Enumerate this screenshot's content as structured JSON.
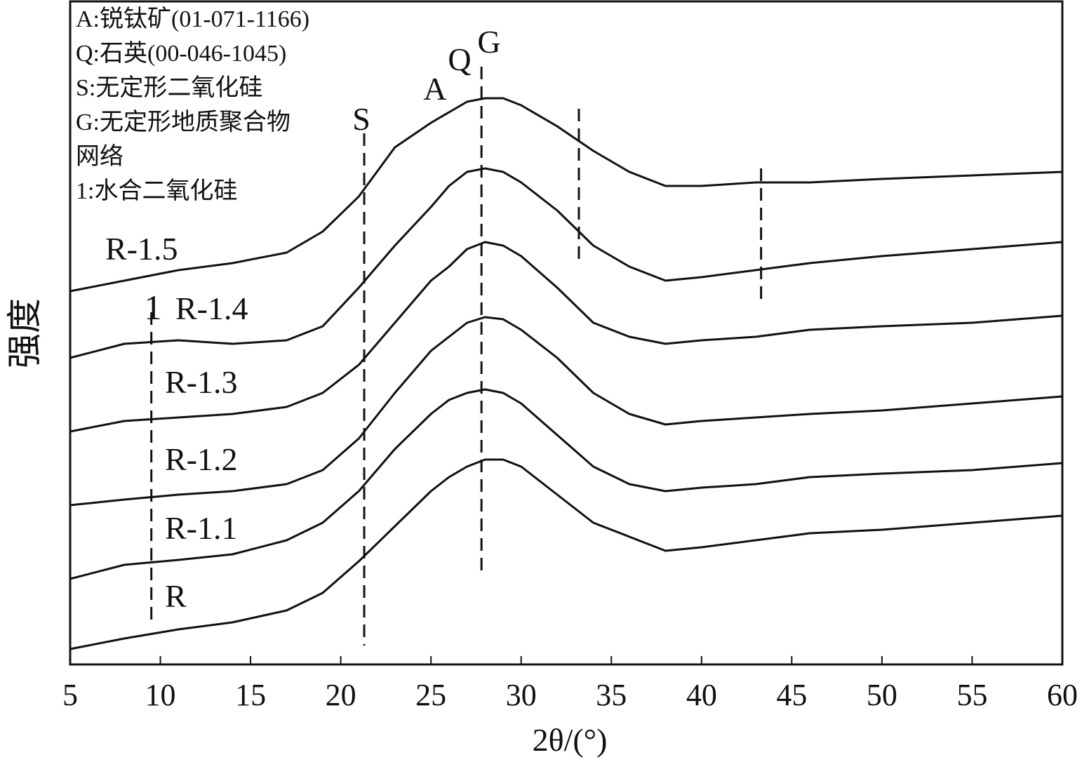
{
  "chart_data": {
    "type": "line",
    "xlabel": "2θ/(°)",
    "ylabel": "强度",
    "legend_lines": [
      "A:锐钛矿(01-071-1166)",
      "Q:石英(00-046-1045)",
      "S:无定形二氧化硅",
      "G:无定形地质聚合物",
      "网络",
      "1:水合二氧化硅"
    ],
    "x": [
      5,
      8,
      11,
      14,
      17,
      19,
      21,
      23,
      25,
      26,
      27,
      28,
      29,
      30,
      32,
      34,
      36,
      38,
      40,
      43,
      46,
      50,
      55,
      60
    ],
    "series": [
      {
        "name": "R",
        "color": "#111111",
        "values": [
          22,
          37,
          50,
          60,
          77,
          102,
          147,
          197,
          247,
          267,
          282,
          292,
          292,
          282,
          242,
          202,
          182,
          162,
          167,
          177,
          187,
          192,
          202,
          212
        ]
      },
      {
        "name": "R-1.1",
        "color": "#111111",
        "values": [
          122,
          142,
          149,
          157,
          177,
          202,
          247,
          307,
          357,
          377,
          387,
          392,
          387,
          372,
          327,
          282,
          257,
          247,
          252,
          257,
          267,
          272,
          277,
          287
        ]
      },
      {
        "name": "R-1.2",
        "color": "#111111",
        "values": [
          227,
          235,
          242,
          247,
          257,
          277,
          322,
          387,
          447,
          467,
          487,
          495,
          492,
          477,
          437,
          387,
          357,
          342,
          347,
          352,
          357,
          362,
          372,
          382
        ]
      },
      {
        "name": "R-1.3",
        "color": "#111111",
        "values": [
          332,
          347,
          352,
          357,
          367,
          387,
          427,
          487,
          547,
          567,
          592,
          602,
          597,
          582,
          537,
          487,
          467,
          457,
          462,
          467,
          477,
          482,
          487,
          497
        ]
      },
      {
        "name": "R-1.4",
        "color": "#111111",
        "values": [
          437,
          457,
          462,
          457,
          462,
          482,
          537,
          597,
          652,
          682,
          702,
          707,
          702,
          687,
          647,
          597,
          567,
          547,
          552,
          562,
          572,
          582,
          592,
          602
        ]
      },
      {
        "name": "R-1.5",
        "color": "#111111",
        "values": [
          532,
          547,
          562,
          572,
          587,
          617,
          667,
          737,
          772,
          787,
          802,
          807,
          807,
          797,
          767,
          732,
          702,
          682,
          682,
          687,
          687,
          692,
          697,
          702
        ]
      }
    ],
    "annotations": [
      {
        "label": "1",
        "x": 9.5
      },
      {
        "label": "S",
        "x": 21.3
      },
      {
        "label": "A",
        "x": 25.8
      },
      {
        "label": "Q",
        "x": 26.7
      },
      {
        "label": "G",
        "x": 27.8
      },
      {
        "x": 33.2
      },
      {
        "x": 43.3
      }
    ],
    "xlim": [
      5,
      60
    ],
    "xticks": [
      5,
      10,
      15,
      20,
      25,
      30,
      35,
      40,
      45,
      50,
      55,
      60
    ],
    "ylim": [
      0,
      945
    ]
  }
}
